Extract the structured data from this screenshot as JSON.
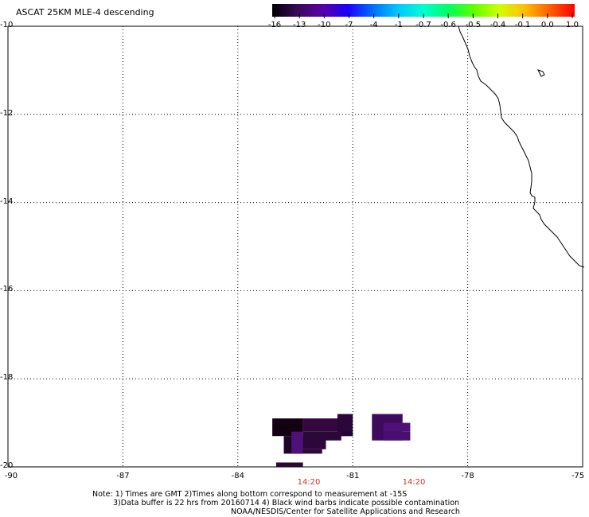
{
  "title": "ASCAT 25KM MLE-4 descending",
  "colorbar": {
    "ticks": [
      "-16",
      "-13",
      "-10",
      "-7",
      "-4",
      "-1",
      "-0.7",
      "-0.6",
      "-0.5",
      "-0.4",
      "-0.1",
      "0.0",
      "1.0"
    ],
    "colors": [
      "#000000",
      "#3a0a5a",
      "#5a00a8",
      "#1a00ff",
      "#0070ff",
      "#00c8ff",
      "#00ffd0",
      "#00ff60",
      "#60ff00",
      "#d0ff00",
      "#ffc000",
      "#ff6000",
      "#ff0000"
    ]
  },
  "map": {
    "lat_labels": [
      "-10",
      "-12",
      "-14",
      "-16",
      "-18",
      "-20"
    ],
    "lon_labels": [
      "-90",
      "-87",
      "-84",
      "-81",
      "-78",
      "-75"
    ],
    "lat_range": [
      -20,
      -10
    ],
    "lon_range": [
      -90,
      -75
    ],
    "grid": "dotted"
  },
  "time_labels": [
    "14:20",
    "14:20"
  ],
  "notes": {
    "line1": "Note: 1) Times are GMT 2)Times along bottom correspond to measurement at -15S",
    "line2": "3)Data buffer is 22 hrs from 20160714 4) Black wind barbs indicate possible contamination",
    "line3": "NOAA/NESDIS/Center for Satellite Applications and Research"
  },
  "data_cells": [
    {
      "lon0": -83.1,
      "lon1": -82.3,
      "lat0": -19.3,
      "lat1": -18.9,
      "color": "#140014"
    },
    {
      "lon0": -82.8,
      "lon1": -82.3,
      "lat0": -19.7,
      "lat1": -19.3,
      "color": "#1e0626"
    },
    {
      "lon0": -82.6,
      "lon1": -81.8,
      "lat0": -19.7,
      "lat1": -19.6,
      "color": "#2a0838"
    },
    {
      "lon0": -82.6,
      "lon1": -81.7,
      "lat0": -19.6,
      "lat1": -19.3,
      "color": "#2c063c"
    },
    {
      "lon0": -82.3,
      "lon1": -81.3,
      "lat0": -19.4,
      "lat1": -19.2,
      "color": "#2a0838"
    },
    {
      "lon0": -82.3,
      "lon1": -81.3,
      "lat0": -19.2,
      "lat1": -18.9,
      "color": "#34083f"
    },
    {
      "lon0": -82.6,
      "lon1": -82.3,
      "lat0": -19.7,
      "lat1": -19.2,
      "color": "#50107a"
    },
    {
      "lon0": -81.4,
      "lon1": -81.0,
      "lat0": -19.3,
      "lat1": -18.8,
      "color": "#2a063a"
    },
    {
      "lon0": -81.3,
      "lon1": -81.0,
      "lat0": -19.3,
      "lat1": -19.2,
      "color": "#200530"
    },
    {
      "lon0": -80.5,
      "lon1": -79.7,
      "lat0": -19.4,
      "lat1": -18.8,
      "color": "#3e0a5e"
    },
    {
      "lon0": -80.2,
      "lon1": -79.5,
      "lat0": -19.4,
      "lat1": -19.2,
      "color": "#48106e"
    },
    {
      "lon0": -80.2,
      "lon1": -79.5,
      "lat0": -19.2,
      "lat1": -19.0,
      "color": "#50107a"
    },
    {
      "lon0": -83.0,
      "lon1": -82.3,
      "lat0": -20.0,
      "lat1": -19.9,
      "color": "#2a0a30"
    }
  ]
}
